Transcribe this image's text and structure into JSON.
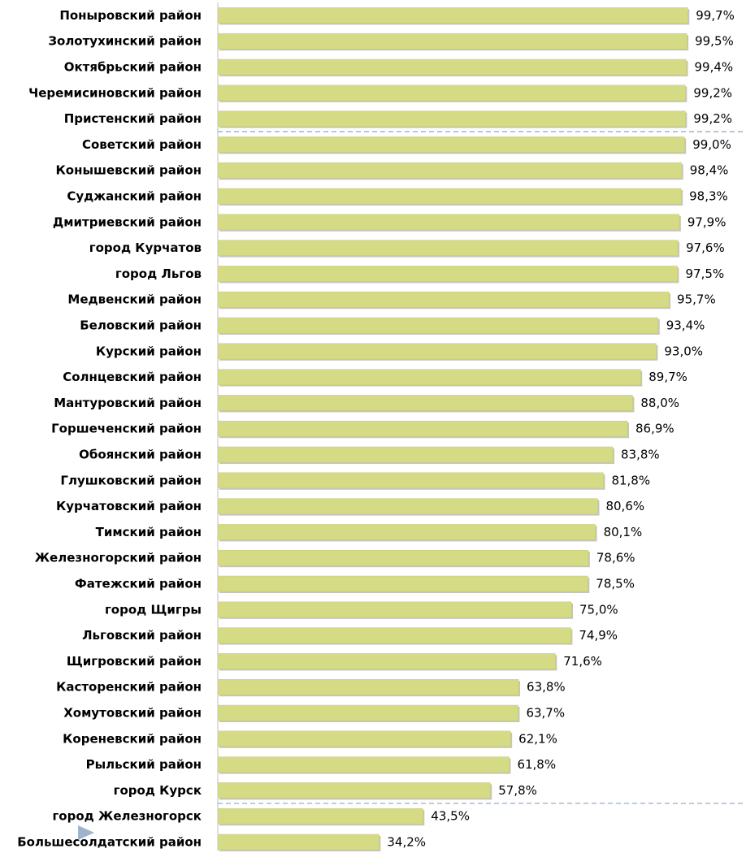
{
  "chart_data": {
    "type": "bar",
    "orientation": "horizontal",
    "categories": [
      "Поныровский район",
      "Золотухинский район",
      "Октябрьский район",
      "Черемисиновский район",
      "Пристенский район",
      "Советский район",
      "Конышевский район",
      "Суджанский район",
      "Дмитриевский район",
      "город Курчатов",
      "город Льгов",
      "Медвенский район",
      "Беловский район",
      "Курский район",
      "Солнцевский район",
      "Мантуровский район",
      "Горшеченский район",
      "Обоянский район",
      "Глушковский район",
      "Курчатовский район",
      "Тимский район",
      "Железногорский район",
      "Фатежский район",
      "город Щигры",
      "Льговский район",
      "Щигровский район",
      "Касторенский район",
      "Хомутовский район",
      "Кореневский район",
      "Рыльский район",
      "город Курск",
      "город Железногорск",
      "Большесолдатский район"
    ],
    "values": [
      99.7,
      99.5,
      99.4,
      99.2,
      99.2,
      99.0,
      98.4,
      98.3,
      97.9,
      97.6,
      97.5,
      95.7,
      93.4,
      93.0,
      89.7,
      88.0,
      86.9,
      83.8,
      81.8,
      80.6,
      80.1,
      78.6,
      78.5,
      75.0,
      74.9,
      71.6,
      63.8,
      63.7,
      62.1,
      61.8,
      57.8,
      43.5,
      34.2
    ],
    "value_labels": [
      "99,7%",
      "99,5%",
      "99,4%",
      "99,2%",
      "99,2%",
      "99,0%",
      "98,4%",
      "98,3%",
      "97,9%",
      "97,6%",
      "97,5%",
      "95,7%",
      "93,4%",
      "93,0%",
      "89,7%",
      "88,0%",
      "86,9%",
      "83,8%",
      "81,8%",
      "80,6%",
      "80,1%",
      "78,6%",
      "78,5%",
      "75,0%",
      "74,9%",
      "71,6%",
      "63,8%",
      "63,7%",
      "62,1%",
      "61,8%",
      "57,8%",
      "43,5%",
      "34,2%"
    ],
    "title": "",
    "xlabel": "",
    "ylabel": "",
    "xlim": [
      0,
      100
    ],
    "grid": false,
    "legend": "none",
    "bar_color": "#d4db84",
    "bar_shadow_color": "#c4c4c4",
    "reference_line_color": "#9fb4cc"
  }
}
